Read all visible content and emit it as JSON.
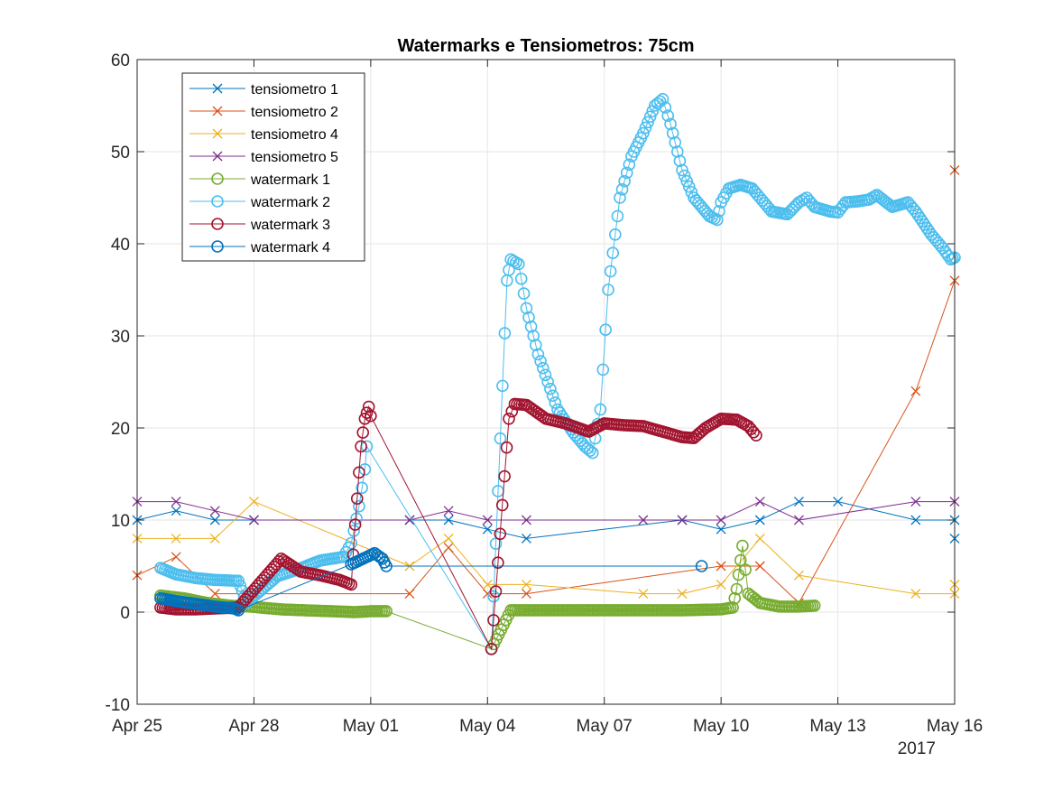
{
  "chart_data": {
    "type": "line",
    "title": "Watermarks e Tensiometros: 75cm",
    "xlabel": "",
    "ylabel": "",
    "x_ticks": [
      "Apr 25",
      "Apr 28",
      "May 01",
      "May 04",
      "May 07",
      "May 10",
      "May 13",
      "May 16"
    ],
    "x_year_label": "2017",
    "x_range_days": [
      0,
      21
    ],
    "x_origin": "Apr 25",
    "ylim": [
      -10,
      60
    ],
    "y_ticks": [
      -10,
      0,
      10,
      20,
      30,
      40,
      50,
      60
    ],
    "grid": true,
    "legend_position": "top-left",
    "series": [
      {
        "name": "tensiometro 1",
        "color": "#0072BD",
        "marker": "x",
        "points": [
          [
            0,
            10
          ],
          [
            1,
            11
          ],
          [
            2,
            10
          ],
          [
            3,
            10
          ],
          [
            7,
            10
          ],
          [
            8,
            10
          ],
          [
            9,
            9
          ],
          [
            10,
            8
          ],
          [
            14,
            10
          ],
          [
            15,
            9
          ],
          [
            16,
            10
          ],
          [
            17,
            12
          ],
          [
            18,
            12
          ],
          [
            20,
            10
          ],
          [
            21,
            10
          ],
          [
            21,
            8
          ]
        ]
      },
      {
        "name": "tensiometro 2",
        "color": "#D95319",
        "marker": "x",
        "points": [
          [
            0,
            4
          ],
          [
            1,
            6
          ],
          [
            2,
            2
          ],
          [
            3,
            2
          ],
          [
            7,
            2
          ],
          [
            8,
            7
          ],
          [
            9,
            2
          ],
          [
            10,
            2
          ],
          [
            15,
            5
          ],
          [
            16,
            5
          ],
          [
            17,
            1
          ],
          [
            20,
            24
          ],
          [
            21,
            36
          ],
          [
            21,
            48
          ]
        ]
      },
      {
        "name": "tensiometro 4",
        "color": "#EDB120",
        "marker": "x",
        "points": [
          [
            0,
            8
          ],
          [
            1,
            8
          ],
          [
            2,
            8
          ],
          [
            3,
            12
          ],
          [
            7,
            5
          ],
          [
            8,
            8
          ],
          [
            9,
            3
          ],
          [
            10,
            3
          ],
          [
            13,
            2
          ],
          [
            14,
            2
          ],
          [
            15,
            3
          ],
          [
            16,
            8
          ],
          [
            17,
            4
          ],
          [
            20,
            2
          ],
          [
            21,
            2
          ],
          [
            21,
            3
          ]
        ]
      },
      {
        "name": "tensiometro 5",
        "color": "#7E2F8E",
        "marker": "x",
        "points": [
          [
            0,
            12
          ],
          [
            1,
            12
          ],
          [
            2,
            11
          ],
          [
            3,
            10
          ],
          [
            7,
            10
          ],
          [
            8,
            11
          ],
          [
            9,
            10
          ],
          [
            10,
            10
          ],
          [
            13,
            10
          ],
          [
            14,
            10
          ],
          [
            15,
            10
          ],
          [
            16,
            12
          ],
          [
            17,
            10
          ],
          [
            20,
            12
          ],
          [
            21,
            12
          ]
        ]
      },
      {
        "name": "watermark 1",
        "color": "#77AC30",
        "marker": "o",
        "points": [
          [
            0.6,
            1.8
          ],
          [
            1.2,
            1.5
          ],
          [
            1.8,
            1.0
          ],
          [
            2.4,
            0.7
          ],
          [
            2.9,
            0.6
          ],
          [
            3.7,
            0.3
          ],
          [
            4.3,
            0.2
          ],
          [
            5,
            0.1
          ],
          [
            5.6,
            0
          ],
          [
            6,
            0.1
          ],
          [
            6.4,
            0.1
          ],
          [
            9.1,
            -4
          ],
          [
            9.6,
            0.2
          ],
          [
            10,
            0.2
          ],
          [
            11,
            0.2
          ],
          [
            12,
            0.2
          ],
          [
            13,
            0.2
          ],
          [
            14,
            0.2
          ],
          [
            15,
            0.3
          ],
          [
            15.3,
            0.5
          ],
          [
            15.4,
            2.5
          ],
          [
            15.55,
            7.2
          ],
          [
            15.7,
            2.0
          ],
          [
            16,
            1.0
          ],
          [
            16.5,
            0.6
          ],
          [
            17,
            0.6
          ],
          [
            17.4,
            0.7
          ]
        ]
      },
      {
        "name": "watermark 2",
        "color": "#4DBEEE",
        "marker": "o",
        "points": [
          [
            0.6,
            4.8
          ],
          [
            1,
            4.1
          ],
          [
            1.5,
            3.7
          ],
          [
            2,
            3.5
          ],
          [
            2.6,
            3.4
          ],
          [
            2.7,
            2.3
          ],
          [
            2.8,
            1.0
          ],
          [
            3.6,
            3.9
          ],
          [
            4.1,
            4.6
          ],
          [
            4.7,
            5.6
          ],
          [
            5.3,
            6.0
          ],
          [
            5.5,
            7.5
          ],
          [
            5.7,
            11.5
          ],
          [
            5.85,
            15.5
          ],
          [
            5.9,
            18.0
          ],
          [
            9.1,
            -4
          ],
          [
            9.5,
            36
          ],
          [
            9.6,
            38.3
          ],
          [
            9.8,
            37.8
          ],
          [
            10,
            33
          ],
          [
            10.3,
            28
          ],
          [
            10.8,
            22
          ],
          [
            11.2,
            19.5
          ],
          [
            11.5,
            18
          ],
          [
            11.7,
            17.3
          ],
          [
            11.9,
            22
          ],
          [
            12.1,
            35
          ],
          [
            12.4,
            45
          ],
          [
            12.7,
            49.5
          ],
          [
            13,
            52
          ],
          [
            13.3,
            55
          ],
          [
            13.5,
            55.7
          ],
          [
            13.7,
            53
          ],
          [
            14,
            48
          ],
          [
            14.3,
            45
          ],
          [
            14.7,
            43
          ],
          [
            14.9,
            42.6
          ],
          [
            15,
            44.5
          ],
          [
            15.2,
            46
          ],
          [
            15.5,
            46.4
          ],
          [
            15.8,
            46
          ],
          [
            16,
            45
          ],
          [
            16.3,
            43.5
          ],
          [
            16.7,
            43.2
          ],
          [
            17,
            44.5
          ],
          [
            17.2,
            45
          ],
          [
            17.4,
            44
          ],
          [
            17.8,
            43.5
          ],
          [
            18,
            43.4
          ],
          [
            18.2,
            44.5
          ],
          [
            18.5,
            44.6
          ],
          [
            18.8,
            44.8
          ],
          [
            19,
            45.3
          ],
          [
            19.4,
            44
          ],
          [
            19.8,
            44.5
          ],
          [
            20,
            43.5
          ],
          [
            20.4,
            41
          ],
          [
            20.7,
            39.5
          ],
          [
            20.9,
            38.3
          ],
          [
            21,
            38.5
          ]
        ]
      },
      {
        "name": "watermark 3",
        "color": "#A2142F",
        "marker": "o",
        "points": [
          [
            0.6,
            0.5
          ],
          [
            1,
            0.3
          ],
          [
            1.5,
            0.3
          ],
          [
            2,
            0.4
          ],
          [
            2.6,
            0.5
          ],
          [
            3.7,
            5.8
          ],
          [
            4.2,
            4.4
          ],
          [
            4.7,
            4.0
          ],
          [
            5.2,
            3.5
          ],
          [
            5.5,
            3.0
          ],
          [
            5.6,
            9.5
          ],
          [
            5.75,
            18
          ],
          [
            5.85,
            21
          ],
          [
            5.95,
            22.3
          ],
          [
            6.0,
            21.3
          ],
          [
            9.1,
            -4
          ],
          [
            9.55,
            21
          ],
          [
            9.7,
            22.6
          ],
          [
            10,
            22.5
          ],
          [
            10.5,
            21
          ],
          [
            11,
            20.5
          ],
          [
            11.6,
            19.6
          ],
          [
            12,
            20.5
          ],
          [
            12.5,
            20.3
          ],
          [
            13,
            20.2
          ],
          [
            13.5,
            19.6
          ],
          [
            14,
            19.0
          ],
          [
            14.3,
            18.9
          ],
          [
            14.6,
            20.0
          ],
          [
            15,
            21.0
          ],
          [
            15.4,
            20.9
          ],
          [
            15.7,
            20.2
          ],
          [
            15.9,
            19.2
          ]
        ]
      },
      {
        "name": "watermark 4",
        "color": "#0072BD",
        "marker": "o",
        "points": [
          [
            0.6,
            1.5
          ],
          [
            1,
            1.2
          ],
          [
            1.5,
            0.9
          ],
          [
            2,
            0.6
          ],
          [
            2.5,
            0.4
          ],
          [
            2.6,
            0.2
          ],
          [
            5.5,
            5.2
          ],
          [
            6.1,
            6.4
          ],
          [
            6.3,
            5.8
          ],
          [
            6.4,
            5.0
          ],
          [
            14.5,
            5.0
          ]
        ]
      }
    ]
  }
}
